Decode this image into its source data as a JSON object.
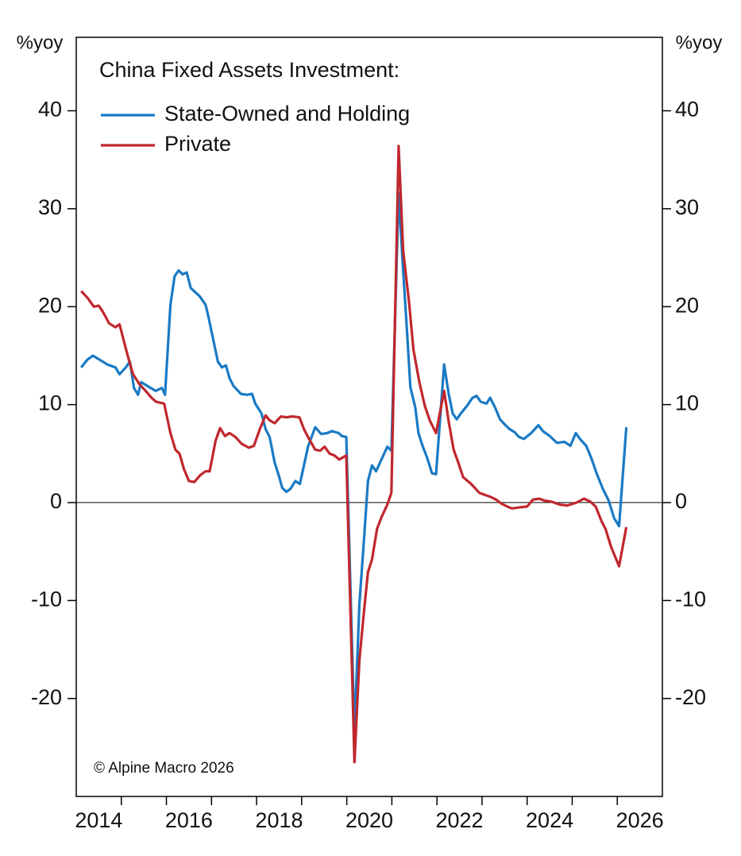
{
  "chart_data": {
    "type": "line",
    "legend_title": "China Fixed Assets Investment:",
    "y_unit": "%yoy",
    "annotations": [
      "© Alpine Macro 2026"
    ],
    "xlim": [
      2014,
      2027
    ],
    "ylim": [
      -30,
      47.5
    ],
    "yticks": [
      -20,
      -10,
      0,
      10,
      20,
      30,
      40
    ],
    "xticks": [
      {
        "value": 2014.5,
        "label": "2014"
      },
      {
        "value": 2016.5,
        "label": "2016"
      },
      {
        "value": 2018.5,
        "label": "2018"
      },
      {
        "value": 2020.5,
        "label": "2020"
      },
      {
        "value": 2022.5,
        "label": "2022"
      },
      {
        "value": 2024.5,
        "label": "2024"
      },
      {
        "value": 2026.5,
        "label": "2026"
      }
    ],
    "xminorticks": [
      2015,
      2016,
      2017,
      2018,
      2019,
      2020,
      2021,
      2022,
      2023,
      2024,
      2025,
      2026
    ],
    "zero_line": true,
    "series": [
      {
        "name": "State-Owned and Holding",
        "color": "#1a7ac4",
        "x": [
          2014.11,
          2014.25,
          2014.37,
          2014.51,
          2014.69,
          2014.87,
          2014.96,
          2015.1,
          2015.19,
          2015.28,
          2015.37,
          2015.44,
          2015.58,
          2015.76,
          2015.9,
          2015.97,
          2016.09,
          2016.18,
          2016.27,
          2016.36,
          2016.45,
          2016.54,
          2016.73,
          2016.87,
          2016.94,
          2017.05,
          2017.14,
          2017.23,
          2017.32,
          2017.4,
          2017.49,
          2017.65,
          2017.79,
          2017.9,
          2017.97,
          2018.11,
          2018.2,
          2018.29,
          2018.4,
          2018.49,
          2018.57,
          2018.66,
          2018.75,
          2018.86,
          2018.96,
          2019.05,
          2019.14,
          2019.3,
          2019.43,
          2019.57,
          2019.67,
          2019.82,
          2019.89,
          2019.99,
          2020.17,
          2020.28,
          2020.38,
          2020.47,
          2020.56,
          2020.65,
          2020.77,
          2020.9,
          2020.99,
          2021.15,
          2021.25,
          2021.34,
          2021.41,
          2021.52,
          2021.59,
          2021.68,
          2021.78,
          2021.89,
          2021.98,
          2022.16,
          2022.26,
          2022.35,
          2022.44,
          2022.53,
          2022.67,
          2022.79,
          2022.88,
          2022.97,
          2023.1,
          2023.18,
          2023.29,
          2023.4,
          2023.5,
          2023.61,
          2023.72,
          2023.82,
          2023.93,
          2024.09,
          2024.25,
          2024.35,
          2024.5,
          2024.66,
          2024.83,
          2024.96,
          2025.08,
          2025.19,
          2025.31,
          2025.42,
          2025.54,
          2025.68,
          2025.81,
          2025.93,
          2026.04,
          2026.2
        ],
        "values": [
          13.8,
          14.6,
          15.0,
          14.6,
          14.1,
          13.8,
          13.1,
          13.8,
          14.4,
          11.7,
          11.0,
          12.3,
          11.9,
          11.4,
          11.7,
          11.0,
          20.2,
          23.1,
          23.7,
          23.3,
          23.5,
          21.9,
          21.1,
          20.2,
          18.8,
          16.4,
          14.4,
          13.8,
          14.0,
          12.7,
          11.9,
          11.1,
          11.0,
          11.1,
          10.1,
          9.1,
          7.5,
          6.7,
          4.1,
          2.8,
          1.5,
          1.1,
          1.4,
          2.2,
          1.9,
          3.8,
          5.7,
          7.7,
          7.0,
          7.1,
          7.3,
          7.1,
          6.8,
          6.7,
          -23.5,
          -10.4,
          -3.9,
          2.2,
          3.8,
          3.2,
          4.4,
          5.7,
          5.3,
          31.6,
          23.7,
          17.2,
          11.8,
          9.7,
          7.1,
          5.8,
          4.6,
          3.0,
          2.9,
          14.1,
          11.1,
          9.1,
          8.5,
          9.1,
          9.9,
          10.7,
          10.9,
          10.3,
          10.1,
          10.7,
          9.7,
          8.5,
          8.0,
          7.5,
          7.2,
          6.7,
          6.5,
          7.1,
          7.9,
          7.3,
          6.8,
          6.1,
          6.2,
          5.8,
          7.1,
          6.4,
          5.8,
          4.6,
          3.0,
          1.4,
          0.2,
          -1.6,
          -2.4,
          7.7
        ]
      },
      {
        "name": "Private",
        "color": "#c0272d",
        "x": [
          2014.11,
          2014.25,
          2014.39,
          2014.5,
          2014.6,
          2014.73,
          2014.87,
          2014.96,
          2015.13,
          2015.26,
          2015.4,
          2015.54,
          2015.67,
          2015.77,
          2015.95,
          2016.09,
          2016.2,
          2016.29,
          2016.39,
          2016.5,
          2016.62,
          2016.75,
          2016.87,
          2016.96,
          2017.09,
          2017.19,
          2017.3,
          2017.4,
          2017.53,
          2017.67,
          2017.83,
          2017.94,
          2018.08,
          2018.2,
          2018.29,
          2018.4,
          2018.54,
          2018.66,
          2018.79,
          2018.95,
          2019.05,
          2019.14,
          2019.3,
          2019.41,
          2019.51,
          2019.62,
          2019.73,
          2019.83,
          2019.99,
          2020.17,
          2020.28,
          2020.38,
          2020.47,
          2020.56,
          2020.67,
          2020.77,
          2020.9,
          2020.99,
          2021.15,
          2021.25,
          2021.38,
          2021.48,
          2021.61,
          2021.73,
          2021.84,
          2021.98,
          2022.16,
          2022.26,
          2022.37,
          2022.48,
          2022.58,
          2022.76,
          2022.94,
          2023.06,
          2023.18,
          2023.31,
          2023.43,
          2023.56,
          2023.66,
          2023.82,
          2024.0,
          2024.13,
          2024.27,
          2024.39,
          2024.54,
          2024.72,
          2024.89,
          2024.96,
          2025.1,
          2025.26,
          2025.4,
          2025.52,
          2025.65,
          2025.74,
          2025.86,
          2026.04,
          2026.2
        ],
        "values": [
          21.6,
          20.9,
          20.0,
          20.1,
          19.4,
          18.3,
          17.9,
          18.2,
          15.2,
          13.1,
          12.1,
          11.4,
          10.7,
          10.3,
          10.1,
          7.1,
          5.4,
          5.0,
          3.4,
          2.2,
          2.1,
          2.8,
          3.2,
          3.2,
          6.3,
          7.6,
          6.8,
          7.1,
          6.7,
          6.0,
          5.6,
          5.8,
          7.6,
          8.9,
          8.4,
          8.1,
          8.8,
          8.7,
          8.8,
          8.7,
          7.5,
          6.7,
          5.4,
          5.3,
          5.7,
          5.0,
          4.8,
          4.4,
          4.8,
          -26.5,
          -16.1,
          -11.2,
          -7.1,
          -5.8,
          -2.7,
          -1.5,
          -0.2,
          1.0,
          36.4,
          25.7,
          20.5,
          15.6,
          12.3,
          9.9,
          8.4,
          7.1,
          11.4,
          8.3,
          5.4,
          4.0,
          2.6,
          1.9,
          1.0,
          0.8,
          0.6,
          0.3,
          -0.1,
          -0.4,
          -0.6,
          -0.5,
          -0.4,
          0.3,
          0.4,
          0.2,
          0.1,
          -0.2,
          -0.3,
          -0.2,
          0.0,
          0.4,
          0.1,
          -0.4,
          -1.9,
          -2.7,
          -4.5,
          -6.5,
          -2.5
        ]
      }
    ]
  }
}
